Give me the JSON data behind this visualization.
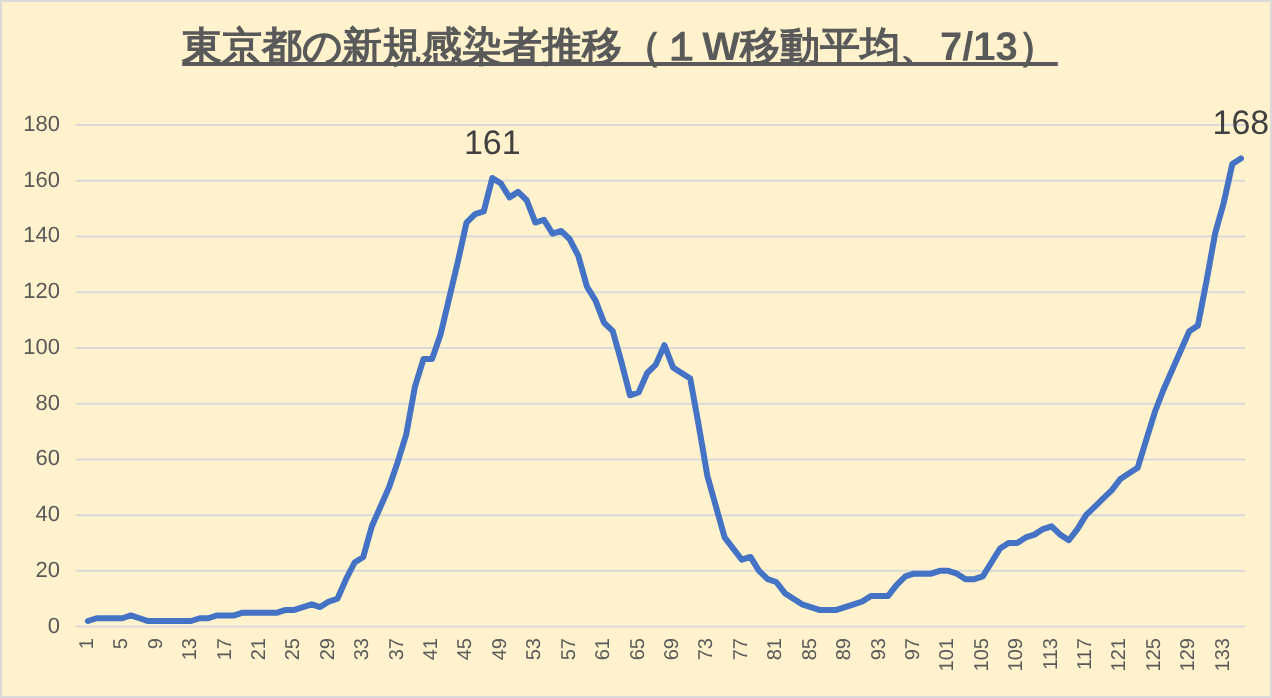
{
  "chart_data": {
    "type": "line",
    "title": "東京都の新規感染者推移（１W移動平均、7/13）",
    "categories": [
      "1",
      null,
      null,
      null,
      "5",
      null,
      null,
      null,
      "9",
      null,
      null,
      null,
      "13",
      null,
      null,
      null,
      "17",
      null,
      null,
      null,
      "21",
      null,
      null,
      null,
      "25",
      null,
      null,
      null,
      "29",
      null,
      null,
      null,
      "33",
      null,
      null,
      null,
      "37",
      null,
      null,
      null,
      "41",
      null,
      null,
      null,
      "45",
      null,
      null,
      null,
      "49",
      null,
      null,
      null,
      "53",
      null,
      null,
      null,
      "57",
      null,
      null,
      null,
      "61",
      null,
      null,
      null,
      "65",
      null,
      null,
      null,
      "69",
      null,
      null,
      null,
      "73",
      null,
      null,
      null,
      "77",
      null,
      null,
      null,
      "81",
      null,
      null,
      null,
      "85",
      null,
      null,
      null,
      "89",
      null,
      null,
      null,
      "93",
      null,
      null,
      null,
      "97",
      null,
      null,
      null,
      "101",
      null,
      null,
      null,
      "105",
      null,
      null,
      null,
      "109",
      null,
      null,
      null,
      "113",
      null,
      null,
      null,
      "117",
      null,
      null,
      null,
      "121",
      null,
      null,
      null,
      "125",
      null,
      null,
      null,
      "129",
      null,
      null,
      null,
      "133",
      null,
      null
    ],
    "series": [
      {
        "color": "#4472c4",
        "values": [
          2,
          3,
          3,
          3,
          3,
          4,
          3,
          2,
          2,
          2,
          2,
          2,
          2,
          3,
          3,
          4,
          4,
          4,
          5,
          5,
          5,
          5,
          5,
          6,
          6,
          7,
          8,
          7,
          9,
          10,
          17,
          23,
          25,
          36,
          43,
          50,
          59,
          69,
          86,
          96,
          96,
          105,
          118,
          131,
          145,
          148,
          149,
          161,
          159,
          154,
          156,
          153,
          145,
          146,
          141,
          142,
          139,
          133,
          122,
          117,
          109,
          106,
          95,
          83,
          84,
          91,
          94,
          101,
          93,
          91,
          89,
          72,
          54,
          43,
          32,
          28,
          24,
          25,
          20,
          17,
          16,
          12,
          10,
          8,
          7,
          6,
          6,
          6,
          7,
          8,
          9,
          11,
          11,
          11,
          15,
          18,
          19,
          19,
          19,
          20,
          20,
          19,
          17,
          17,
          18,
          23,
          28,
          30,
          30,
          32,
          33,
          35,
          36,
          33,
          31,
          35,
          40,
          43,
          46,
          49,
          53,
          55,
          57,
          67,
          77,
          85,
          92,
          99,
          106,
          108,
          124,
          141,
          152,
          166,
          168
        ],
        "value_labels": [
          null,
          null,
          null,
          null,
          null,
          null,
          null,
          null,
          null,
          null,
          null,
          null,
          null,
          null,
          null,
          null,
          null,
          null,
          null,
          null,
          null,
          null,
          null,
          null,
          null,
          null,
          null,
          null,
          null,
          null,
          null,
          null,
          null,
          null,
          null,
          null,
          null,
          null,
          null,
          null,
          null,
          null,
          null,
          null,
          null,
          null,
          null,
          "161",
          null,
          null,
          null,
          null,
          null,
          null,
          null,
          null,
          null,
          null,
          null,
          null,
          null,
          null,
          null,
          null,
          null,
          null,
          null,
          null,
          null,
          null,
          null,
          null,
          null,
          null,
          null,
          null,
          null,
          null,
          null,
          null,
          null,
          null,
          null,
          null,
          null,
          null,
          null,
          null,
          null,
          null,
          null,
          null,
          null,
          null,
          null,
          null,
          null,
          null,
          null,
          null,
          null,
          null,
          null,
          null,
          null,
          null,
          null,
          null,
          null,
          null,
          null,
          null,
          null,
          null,
          null,
          null,
          null,
          null,
          null,
          null,
          null,
          null,
          null,
          null,
          null,
          null,
          null,
          null,
          null,
          null,
          null,
          null,
          null,
          null,
          "168"
        ]
      }
    ],
    "ylim": [
      0,
      180
    ],
    "yticks": [
      0,
      20,
      40,
      60,
      80,
      100,
      120,
      140,
      160,
      180
    ],
    "grid": "y"
  }
}
